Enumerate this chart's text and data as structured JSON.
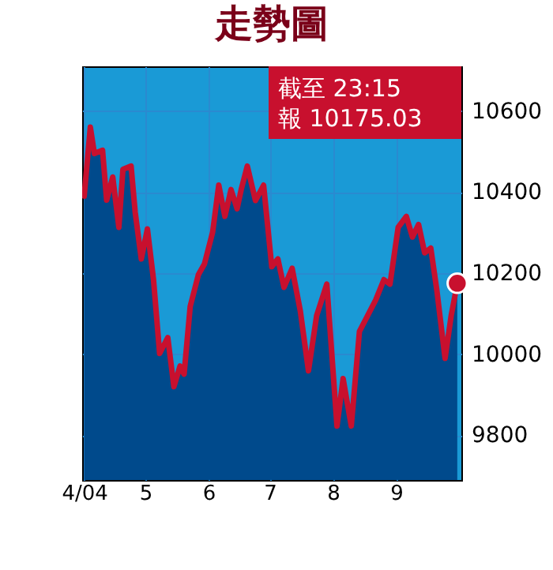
{
  "chart_data": {
    "type": "line",
    "title": "走勢圖",
    "x": [
      "2004-04-01",
      "2004-04-04",
      "2004-04-06",
      "2004-04-10",
      "2004-04-12",
      "2004-04-15",
      "2004-04-18",
      "2004-04-20",
      "2004-04-24",
      "2004-04-26",
      "2004-04-29",
      "2004-05-02",
      "2004-05-05",
      "2004-05-08",
      "2004-05-12",
      "2004-05-15",
      "2004-05-18",
      "2004-05-20",
      "2004-05-23",
      "2004-05-27",
      "2004-05-30",
      "2004-06-03",
      "2004-06-06",
      "2004-06-09",
      "2004-06-12",
      "2004-06-15",
      "2004-06-17",
      "2004-06-20",
      "2004-06-24",
      "2004-06-28",
      "2004-07-02",
      "2004-07-05",
      "2004-07-08",
      "2004-07-12",
      "2004-07-16",
      "2004-07-20",
      "2004-07-24",
      "2004-07-29",
      "2004-08-03",
      "2004-08-06",
      "2004-08-10",
      "2004-08-14",
      "2004-08-18",
      "2004-08-22",
      "2004-08-26",
      "2004-08-29",
      "2004-09-02",
      "2004-09-06",
      "2004-09-09",
      "2004-09-12",
      "2004-09-15",
      "2004-09-18",
      "2004-09-21",
      "2004-09-25",
      "2004-09-28",
      "2004-10-01"
    ],
    "series": [
      {
        "type": "area",
        "color": "#004a8c",
        "values": [
          10390,
          10560,
          10495,
          10503,
          10380,
          10437,
          10313,
          10456,
          10464,
          10351,
          10235,
          10309,
          10184,
          10002,
          10041,
          9920,
          9971,
          9951,
          10118,
          10196,
          10223,
          10301,
          10417,
          10340,
          10406,
          10359,
          10406,
          10464,
          10379,
          10417,
          10216,
          10235,
          10165,
          10212,
          10107,
          9959,
          10095,
          10173,
          9823,
          9940,
          9823,
          10056,
          10095,
          10134,
          10184,
          10173,
          10313,
          10340,
          10289,
          10320,
          10250,
          10262,
          10157,
          9990,
          10095,
          10175
        ]
      },
      {
        "type": "line",
        "color": "#c8102e",
        "values": [
          10390,
          10560,
          10495,
          10503,
          10380,
          10437,
          10313,
          10456,
          10464,
          10351,
          10235,
          10309,
          10184,
          10002,
          10041,
          9920,
          9971,
          9951,
          10118,
          10196,
          10223,
          10301,
          10417,
          10340,
          10406,
          10359,
          10406,
          10464,
          10379,
          10417,
          10216,
          10235,
          10165,
          10212,
          10107,
          9959,
          10095,
          10173,
          9823,
          9940,
          9823,
          10056,
          10095,
          10134,
          10184,
          10173,
          10313,
          10340,
          10289,
          10320,
          10250,
          10262,
          10157,
          9990,
          10095,
          10175
        ]
      }
    ],
    "xlim": [
      "2004-03-31",
      "2004-10-03"
    ],
    "xticks": [
      {
        "value": "2004-04-01",
        "label": "4/04"
      },
      {
        "value": "2004-05-01",
        "label": "5"
      },
      {
        "value": "2004-06-01",
        "label": "6"
      },
      {
        "value": "2004-07-01",
        "label": "7"
      },
      {
        "value": "2004-08-01",
        "label": "8"
      },
      {
        "value": "2004-09-01",
        "label": "9"
      }
    ],
    "ylim": [
      9690,
      10710
    ],
    "yticks": [
      9800,
      10000,
      10200,
      10400,
      10600
    ],
    "grid": true,
    "marker": "none",
    "line_style": "solid",
    "annotations": [
      "截至 23:15",
      "報 10175.03"
    ]
  }
}
